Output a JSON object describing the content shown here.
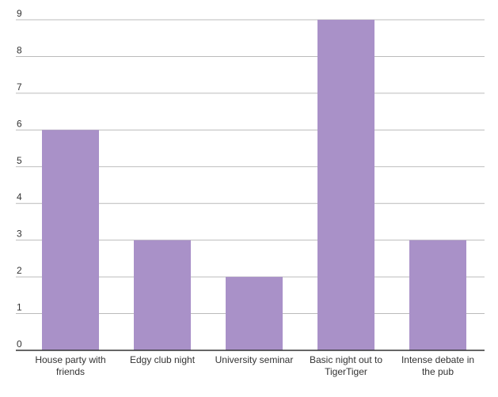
{
  "chart_data": {
    "type": "bar",
    "categories": [
      "House party with friends",
      "Edgy club night",
      "University seminar",
      "Basic night out to TigerTiger",
      "Intense debate in the pub"
    ],
    "values": [
      6,
      3,
      2,
      9,
      3
    ],
    "color": "#a991c8",
    "ylim": [
      0,
      9
    ],
    "yticks": [
      0,
      1,
      2,
      3,
      4,
      5,
      6,
      7,
      8,
      9
    ],
    "grid": true
  }
}
